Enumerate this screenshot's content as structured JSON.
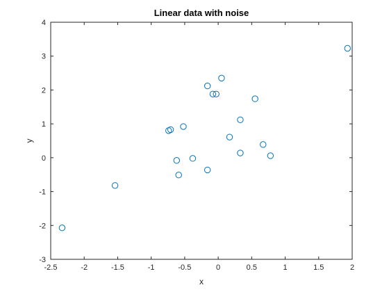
{
  "chart_data": {
    "type": "scatter",
    "title": "Linear data with noise",
    "xlabel": "x",
    "ylabel": "y",
    "xlim": [
      -2.5,
      2
    ],
    "ylim": [
      -3,
      4
    ],
    "xticks": [
      -2.5,
      -2,
      -1.5,
      -1,
      -0.5,
      0,
      0.5,
      1,
      1.5,
      2
    ],
    "yticks": [
      -3,
      -2,
      -1,
      0,
      1,
      2,
      3,
      4
    ],
    "grid": false,
    "marker": "circle-open",
    "marker_color": "#0072bd",
    "points": [
      {
        "x": -2.33,
        "y": -2.07
      },
      {
        "x": -1.54,
        "y": -0.82
      },
      {
        "x": -0.74,
        "y": 0.8
      },
      {
        "x": -0.71,
        "y": 0.83
      },
      {
        "x": -0.62,
        "y": -0.08
      },
      {
        "x": -0.59,
        "y": -0.51
      },
      {
        "x": -0.52,
        "y": 0.92
      },
      {
        "x": -0.38,
        "y": -0.02
      },
      {
        "x": -0.16,
        "y": 2.12
      },
      {
        "x": -0.16,
        "y": -0.36
      },
      {
        "x": -0.08,
        "y": 1.88
      },
      {
        "x": -0.03,
        "y": 1.88
      },
      {
        "x": 0.05,
        "y": 2.35
      },
      {
        "x": 0.17,
        "y": 0.61
      },
      {
        "x": 0.33,
        "y": 1.12
      },
      {
        "x": 0.33,
        "y": 0.14
      },
      {
        "x": 0.55,
        "y": 1.74
      },
      {
        "x": 0.67,
        "y": 0.39
      },
      {
        "x": 0.78,
        "y": 0.06
      },
      {
        "x": 1.93,
        "y": 3.23
      }
    ]
  }
}
